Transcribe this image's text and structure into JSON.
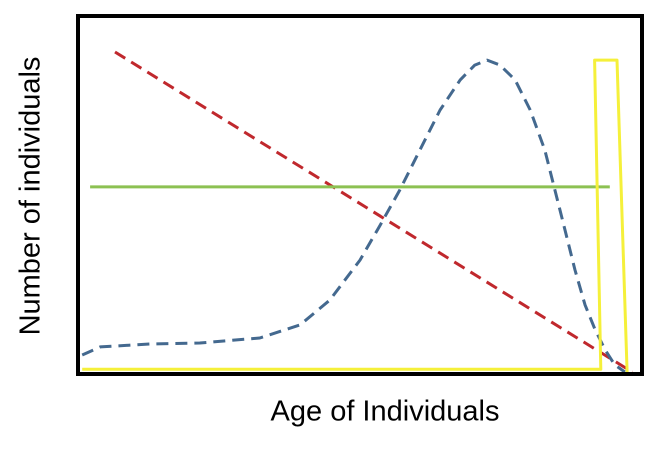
{
  "chart_data": {
    "type": "line",
    "x_label": "Age of Individuals",
    "y_label": "Number of individuals",
    "xlim": [
      0,
      100
    ],
    "ylim": [
      0,
      100
    ],
    "series": [
      {
        "color": "#c0282d",
        "dashed": true,
        "x": [
          6.25,
          98.6
        ],
        "values": [
          90.4,
          0
        ]
      },
      {
        "color": "#8cc152",
        "dashed": false,
        "x": [
          1.8,
          94.6
        ],
        "values": [
          52.3,
          52.3
        ]
      },
      {
        "color": "#44698f",
        "dashed": true,
        "x": [
          0.4,
          3.6,
          12.5,
          21.4,
          32.1,
          39.3,
          44.6,
          50,
          53.6,
          57.1,
          60.7,
          64.3,
          67.9,
          70.5,
          72.7,
          75,
          77.7,
          80.4,
          83,
          84.8,
          86.6,
          88.4,
          90.2,
          92,
          93.8,
          95.5,
          97.3
        ],
        "values": [
          4.8,
          7.1,
          7.9,
          8.2,
          9.6,
          13.3,
          20.3,
          31.6,
          41.5,
          51.4,
          62.7,
          74,
          82.5,
          86.7,
          88.1,
          86.7,
          82.5,
          74,
          62.7,
          51.4,
          40.1,
          28.8,
          18.9,
          11.9,
          6.2,
          2,
          0
        ]
      },
      {
        "color": "#f5f03a",
        "dashed": false,
        "x": [
          0.4,
          93,
          91.9,
          95.9,
          97.7
        ],
        "values": [
          0.8,
          0.8,
          88.1,
          88.1,
          0
        ]
      }
    ]
  }
}
